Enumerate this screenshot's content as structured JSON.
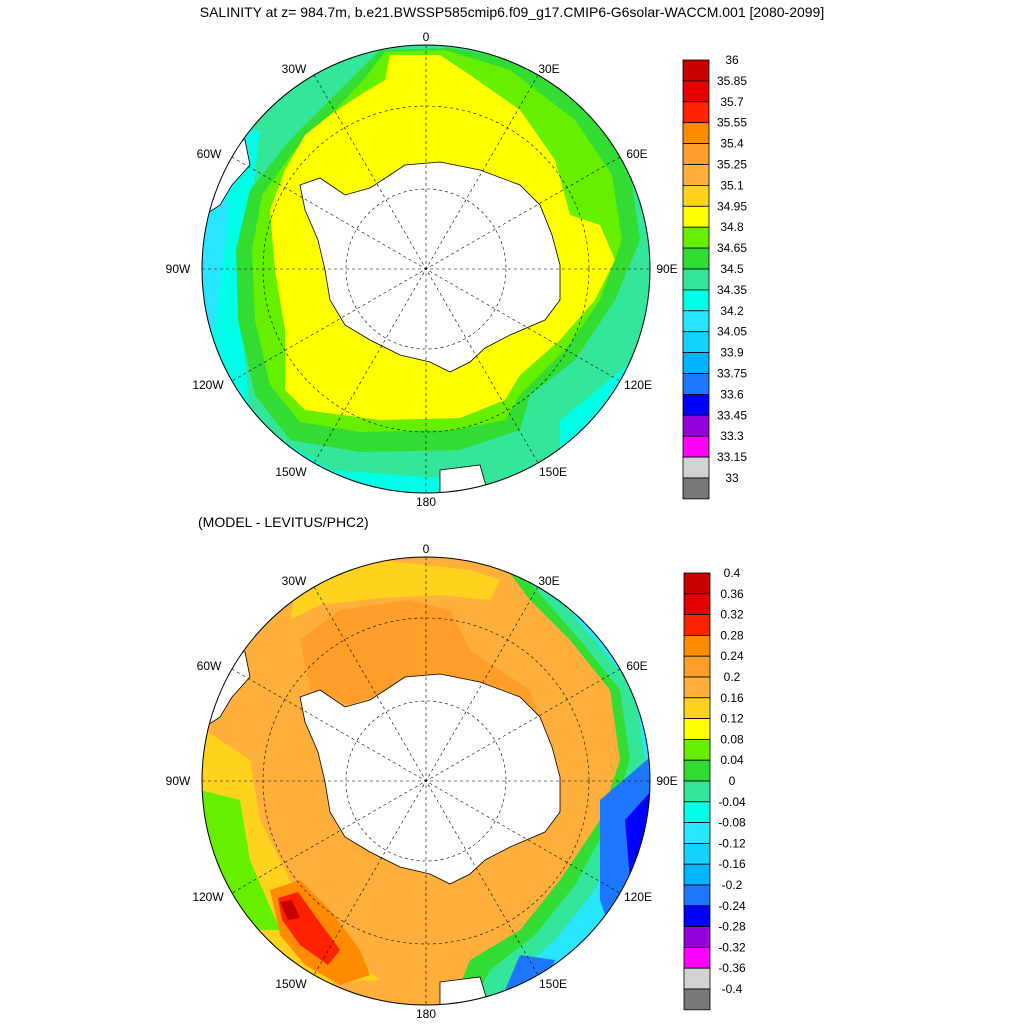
{
  "title": "SALINITY at z= 984.7m, b.e21.BWSSP585cmip6.f09_g17.CMIP6-G6solar-WACCM.001 [2080-2099]",
  "subtitle": "(MODEL - LEVITUS/PHC2)",
  "colors": {
    "land": "#ffffff",
    "coast": "#000000",
    "grid": "#000000"
  },
  "maps": [
    {
      "name": "salinity",
      "longitude_labels": {
        "0": "0",
        "30E": "30E",
        "60E": "60E",
        "90E": "90E",
        "120E": "120E",
        "150E": "150E",
        "180": "180",
        "150W": "150W",
        "120W": "120W",
        "90W": "90W",
        "60W": "60W",
        "30W": "30W"
      },
      "colorbar": {
        "labels": [
          "36",
          "35.85",
          "35.7",
          "35.55",
          "35.4",
          "35.25",
          "35.1",
          "34.95",
          "34.8",
          "34.65",
          "34.5",
          "34.35",
          "34.2",
          "34.05",
          "33.9",
          "33.75",
          "33.6",
          "33.45",
          "33.3",
          "33.15",
          "33"
        ],
        "colors": [
          "#c80000",
          "#e60000",
          "#ff2200",
          "#ff8c00",
          "#ff9e28",
          "#ffb03c",
          "#ffd21e",
          "#ffff00",
          "#66f000",
          "#33dc33",
          "#33e699",
          "#00ffe6",
          "#28e6ff",
          "#14d2ff",
          "#00b4ff",
          "#1e78ff",
          "#0000ff",
          "#9600dc",
          "#ff00ff",
          "#d2d2d2",
          "#787878"
        ]
      }
    },
    {
      "name": "difference",
      "longitude_labels": {
        "0": "0",
        "30E": "30E",
        "60E": "60E",
        "90E": "90E",
        "120E": "120E",
        "150E": "150E",
        "180": "180",
        "150W": "150W",
        "120W": "120W",
        "90W": "90W",
        "60W": "60W",
        "30W": "30W"
      },
      "colorbar": {
        "labels": [
          "0.4",
          "0.36",
          "0.32",
          "0.28",
          "0.24",
          "0.2",
          "0.16",
          "0.12",
          "0.08",
          "0.04",
          "0",
          "-0.04",
          "-0.08",
          "-0.12",
          "-0.16",
          "-0.2",
          "-0.24",
          "-0.28",
          "-0.32",
          "-0.36",
          "-0.4"
        ],
        "colors": [
          "#c80000",
          "#e60000",
          "#ff2200",
          "#ff8c00",
          "#ff9e28",
          "#ffb03c",
          "#ffd21e",
          "#ffff00",
          "#66f000",
          "#33dc33",
          "#33e699",
          "#00ffe6",
          "#28e6ff",
          "#14d2ff",
          "#00b4ff",
          "#1e78ff",
          "#0000ff",
          "#9600dc",
          "#ff00ff",
          "#d2d2d2",
          "#787878"
        ]
      }
    }
  ]
}
